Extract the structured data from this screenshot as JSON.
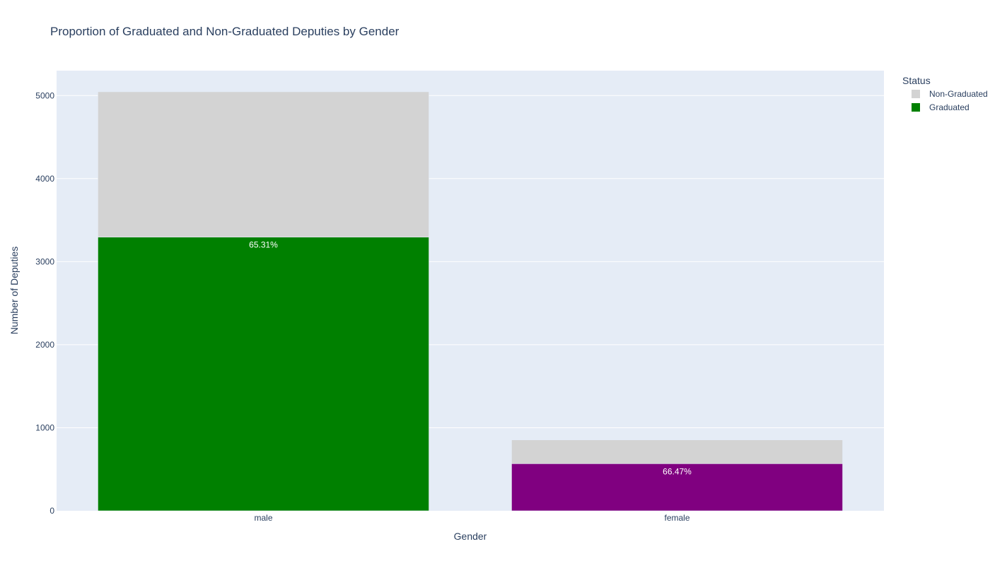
{
  "chart_data": {
    "type": "bar",
    "barmode": "stack",
    "title": "Proportion of Graduated and Non-Graduated Deputies by Gender",
    "xlabel": "Gender",
    "ylabel": "Number of Deputies",
    "categories": [
      "male",
      "female"
    ],
    "ylim": [
      0,
      5300
    ],
    "yticks": [
      0,
      1000,
      2000,
      3000,
      4000,
      5000
    ],
    "grid": true,
    "legend_title": "Status",
    "legend_position": "top-right",
    "series": [
      {
        "name": "Graduated",
        "values": [
          3295,
          567
        ],
        "colors": [
          "#008000",
          "#800080"
        ],
        "labels": [
          "65.31%",
          "66.47%"
        ]
      },
      {
        "name": "Non-Graduated",
        "values": [
          1750,
          286
        ],
        "colors": [
          "#d3d3d3",
          "#d3d3d3"
        ]
      }
    ],
    "legend": [
      {
        "name": "Non-Graduated",
        "color": "#d3d3d3"
      },
      {
        "name": "Graduated",
        "color": "#008000"
      }
    ],
    "plot_background": "#e5ecf6",
    "grid_color": "#ffffff",
    "text_color": "#2a3f5f"
  }
}
